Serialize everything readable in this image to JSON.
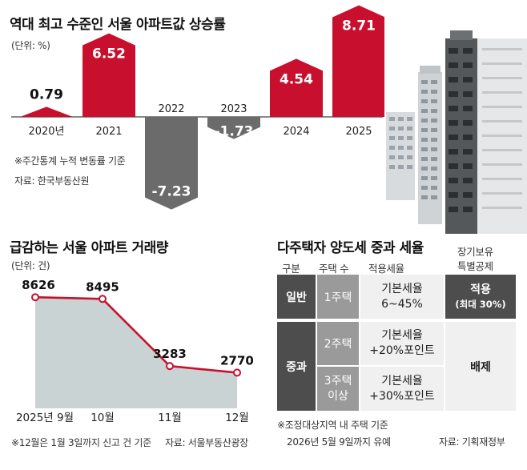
{
  "colors": {
    "up": "#c8102e",
    "down": "#6b6b6b",
    "area": "#c9d3d3",
    "line": "#c8102e",
    "dark": "#4d4d4d",
    "mid": "#9a9a9a",
    "light": "#f0f0f0",
    "border": "#d4d4d4"
  },
  "chart_data": [
    {
      "type": "bar",
      "title": "역대 최고 수준인 서울 아파트값 상승률",
      "unit": "(단위: %)",
      "categories": [
        "2020년",
        "2021",
        "2022",
        "2023",
        "2024",
        "2025"
      ],
      "values": [
        0.79,
        6.52,
        -7.23,
        -1.73,
        4.54,
        8.71
      ],
      "value_labels": [
        "0.79",
        "6.52",
        "-7.23",
        "-1.73",
        "4.54",
        "8.71"
      ],
      "notes": [
        "※주간통계 누적 변동률 기준",
        "자료: 한국부동산원"
      ]
    },
    {
      "type": "area",
      "title": "급감하는 서울 아파트 거래량",
      "unit": "(단위: 건)",
      "categories": [
        "2025년 9월",
        "10월",
        "11월",
        "12월"
      ],
      "values": [
        8626,
        8495,
        3283,
        2770
      ],
      "value_labels": [
        "8626",
        "8495",
        "3283",
        "2770"
      ],
      "notes": [
        "※12월은 1월 3일까지 신고 건 기준",
        "자료: 서울부동산광장"
      ]
    },
    {
      "type": "table",
      "title": "다주택자 양도세 중과 세율",
      "headers": [
        "구분",
        "주택 수",
        "적용세율",
        "장기보유",
        "특별공제"
      ],
      "rows": [
        {
          "group": "일반",
          "count": "1주택",
          "rate_1": "기본세율",
          "rate_2": "6~45%",
          "deduction": "적용",
          "deduction_sub": "(최대 30%)"
        },
        {
          "group": "중과",
          "count": "2주택",
          "rate_1": "기본세율",
          "rate_2": "+20%포인트",
          "deduction": "배제"
        },
        {
          "group": "",
          "count_1": "3주택",
          "count_2": "이상",
          "rate_1": "기본세율",
          "rate_2": "+30%포인트"
        }
      ],
      "notes": [
        "※조정대상지역 내 주택 기준",
        "2026년 5월 9일까지 유예"
      ],
      "source": "자료: 기획재정부"
    }
  ]
}
